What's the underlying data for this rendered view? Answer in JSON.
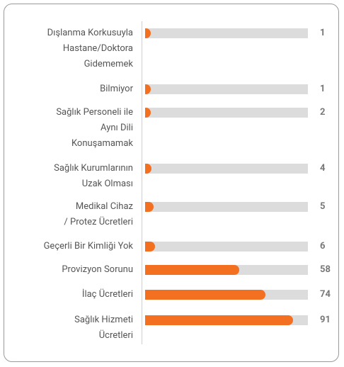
{
  "chart_data": {
    "type": "bar",
    "categories": [
      "Dışlanma Korkusuyla\nHastane/Doktora\nGidememek",
      "Bilmiyor",
      "Sağlık Personeli ile\nAynı Dili \nKonuşamamak",
      "Sağlık Kurumlarının\nUzak Olması",
      "Medikal Cihaz\n/ Protez Ücretleri",
      "Geçerli Bir Kimliği Yok",
      "Provizyon Sorunu",
      "İlaç Ücretleri",
      "Sağlık Hizmeti\nÜcretleri"
    ],
    "values": [
      1,
      1,
      2,
      4,
      5,
      6,
      58,
      74,
      91
    ],
    "color": "#f37021",
    "track_color": "#dcdcdc",
    "xlim": [
      0,
      100
    ]
  }
}
